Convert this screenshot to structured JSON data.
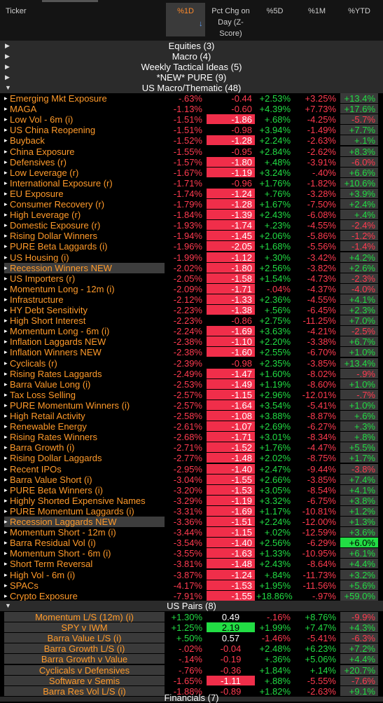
{
  "header": {
    "ticker": "Ticker",
    "c1": "%1D",
    "c1_arrow": "↓",
    "c2a": "Pct Chg on",
    "c2b": "Day (Z-",
    "c2c": "Score)",
    "c3": "%5D",
    "c4": "%1M",
    "c5": "%YTD"
  },
  "groups": {
    "equities": "Equities (3)",
    "macro": "Macro (4)",
    "weekly": "Weekly Tactical Ideas (5)",
    "new_pure": "*NEW* PURE (9)",
    "us_macro": "US Macro/Thematic (48)",
    "us_pairs": "US Pairs (8)",
    "financials": "Financials (7)"
  },
  "rows": [
    {
      "name": "Emerging Mkt Exposure",
      "d1": "-.63%",
      "z": "-0.44",
      "d5": "+2.53%",
      "m1": "+3.25%",
      "ytd": "+13.4%"
    },
    {
      "name": "MAGA",
      "d1": "-1.13%",
      "z": "-0.60",
      "d5": "+4.39%",
      "m1": "+7.73%",
      "ytd": "+17.6%"
    },
    {
      "name": "Low Vol - 6m (i)",
      "d1": "-1.51%",
      "z": "-1.86",
      "d5": "+.68%",
      "m1": "-4.25%",
      "ytd": "-5.7%"
    },
    {
      "name": "US China Reopening",
      "d1": "-1.51%",
      "z": "-0.98",
      "d5": "+3.94%",
      "m1": "-1.49%",
      "ytd": "+7.7%"
    },
    {
      "name": "Buyback",
      "d1": "-1.52%",
      "z": "-1.28",
      "d5": "+2.24%",
      "m1": "-2.63%",
      "ytd": "+.1%"
    },
    {
      "name": "China Exposure",
      "d1": "-1.55%",
      "z": "-0.95",
      "d5": "+2.84%",
      "m1": "-2.62%",
      "ytd": "+8.3%"
    },
    {
      "name": "Defensives (r)",
      "d1": "-1.57%",
      "z": "-1.80",
      "d5": "+.48%",
      "m1": "-3.91%",
      "ytd": "-6.0%"
    },
    {
      "name": "Low Leverage (r)",
      "d1": "-1.67%",
      "z": "-1.19",
      "d5": "+3.24%",
      "m1": "-.40%",
      "ytd": "+6.6%"
    },
    {
      "name": "International Exposure (r)",
      "d1": "-1.71%",
      "z": "-0.96",
      "d5": "+1.76%",
      "m1": "-1.82%",
      "ytd": "+10.6%"
    },
    {
      "name": "EU Exposure",
      "d1": "-1.74%",
      "z": "-1.24",
      "d5": "+.76%",
      "m1": "-3.28%",
      "ytd": "+3.9%"
    },
    {
      "name": "Consumer Recovery (r)",
      "d1": "-1.79%",
      "z": "-1.28",
      "d5": "+1.67%",
      "m1": "-7.50%",
      "ytd": "+2.4%"
    },
    {
      "name": "High Leverage (r)",
      "d1": "-1.84%",
      "z": "-1.39",
      "d5": "+2.43%",
      "m1": "-6.08%",
      "ytd": "+.4%"
    },
    {
      "name": "Domestic Exposure (r)",
      "d1": "-1.93%",
      "z": "-1.74",
      "d5": "+.23%",
      "m1": "-4.55%",
      "ytd": "-2.4%"
    },
    {
      "name": "Rising Dollar Winners",
      "d1": "-1.94%",
      "z": "-1.45",
      "d5": "+2.06%",
      "m1": "-5.86%",
      "ytd": "-1.2%"
    },
    {
      "name": "PURE Beta Laggards (i)",
      "d1": "-1.96%",
      "z": "-2.05",
      "d5": "+1.68%",
      "m1": "-5.56%",
      "ytd": "-1.4%"
    },
    {
      "name": "US Housing (i)",
      "d1": "-1.99%",
      "z": "-1.12",
      "d5": "+.30%",
      "m1": "-3.42%",
      "ytd": "+4.2%"
    },
    {
      "name": "Recession Winners NEW",
      "d1": "-2.02%",
      "z": "-1.80",
      "d5": "+2.56%",
      "m1": "-3.82%",
      "ytd": "+2.6%"
    },
    {
      "name": "US Importers (r)",
      "d1": "-2.05%",
      "z": "-1.58",
      "d5": "+1.54%",
      "m1": "-4.73%",
      "ytd": "-2.3%"
    },
    {
      "name": "Momentum Long - 12m (i)",
      "d1": "-2.09%",
      "z": "-1.71",
      "d5": "-.04%",
      "m1": "-4.37%",
      "ytd": "-4.0%"
    },
    {
      "name": "Infrastructure",
      "d1": "-2.12%",
      "z": "-1.33",
      "d5": "+2.36%",
      "m1": "-4.55%",
      "ytd": "+4.1%"
    },
    {
      "name": "HY Debt Sensitivity",
      "d1": "-2.23%",
      "z": "-1.38",
      "d5": "+.56%",
      "m1": "-6.45%",
      "ytd": "+2.3%"
    },
    {
      "name": "High Short Interest",
      "d1": "-2.23%",
      "z": "-0.86",
      "d5": "+2.75%",
      "m1": "-11.25%",
      "ytd": "+7.0%"
    },
    {
      "name": "Momentum Long - 6m (i)",
      "d1": "-2.24%",
      "z": "-1.69",
      "d5": "+3.63%",
      "m1": "-4.21%",
      "ytd": "-2.5%"
    },
    {
      "name": "Inflation Laggards NEW",
      "d1": "-2.38%",
      "z": "-1.10",
      "d5": "+2.20%",
      "m1": "-3.38%",
      "ytd": "+6.7%"
    },
    {
      "name": "Inflation Winners NEW",
      "d1": "-2.38%",
      "z": "-1.60",
      "d5": "+2.55%",
      "m1": "-6.70%",
      "ytd": "+1.0%"
    },
    {
      "name": "Cyclicals (r)",
      "d1": "-2.39%",
      "z": "-0.98",
      "d5": "+2.35%",
      "m1": "-3.85%",
      "ytd": "+13.4%"
    },
    {
      "name": "Rising Rates Laggards",
      "d1": "-2.49%",
      "z": "-1.47",
      "d5": "+1.60%",
      "m1": "-8.02%",
      "ytd": "-.9%"
    },
    {
      "name": "Barra Value Long (i)",
      "d1": "-2.53%",
      "z": "-1.49",
      "d5": "+1.19%",
      "m1": "-8.60%",
      "ytd": "+1.0%"
    },
    {
      "name": "Tax Loss Selling",
      "d1": "-2.57%",
      "z": "-1.15",
      "d5": "+2.96%",
      "m1": "-12.01%",
      "ytd": "-.7%"
    },
    {
      "name": "PURE Momentum Winners (i)",
      "d1": "-2.57%",
      "z": "-1.64",
      "d5": "+3.54%",
      "m1": "-5.41%",
      "ytd": "+1.0%"
    },
    {
      "name": "High Retail Activity",
      "d1": "-2.58%",
      "z": "-1.08",
      "d5": "+3.88%",
      "m1": "-8.87%",
      "ytd": "+.6%"
    },
    {
      "name": "Renewable Energy",
      "d1": "-2.61%",
      "z": "-1.07",
      "d5": "+2.69%",
      "m1": "-6.27%",
      "ytd": "+.3%"
    },
    {
      "name": "Rising Rates Winners",
      "d1": "-2.68%",
      "z": "-1.71",
      "d5": "+3.01%",
      "m1": "-8.34%",
      "ytd": "+.8%"
    },
    {
      "name": "Barra Growth (i)",
      "d1": "-2.71%",
      "z": "-1.52",
      "d5": "+1.76%",
      "m1": "-4.47%",
      "ytd": "+5.5%"
    },
    {
      "name": "Rising Dollar Laggards",
      "d1": "-2.77%",
      "z": "-1.48",
      "d5": "+2.02%",
      "m1": "-8.75%",
      "ytd": "+1.7%"
    },
    {
      "name": "Recent IPOs",
      "d1": "-2.95%",
      "z": "-1.40",
      "d5": "+2.47%",
      "m1": "-9.44%",
      "ytd": "-3.8%"
    },
    {
      "name": "Barra Value Short (i)",
      "d1": "-3.04%",
      "z": "-1.55",
      "d5": "+2.66%",
      "m1": "-3.85%",
      "ytd": "+7.4%"
    },
    {
      "name": "PURE Beta Winners (i)",
      "d1": "-3.20%",
      "z": "-1.53",
      "d5": "+3.05%",
      "m1": "-8.54%",
      "ytd": "+4.1%"
    },
    {
      "name": "Highly Shorted Expensive Names",
      "d1": "-3.29%",
      "z": "-1.19",
      "d5": "+3.32%",
      "m1": "-6.75%",
      "ytd": "+3.8%"
    },
    {
      "name": "PURE Momentum Laggards (i)",
      "d1": "-3.31%",
      "z": "-1.69",
      "d5": "+1.17%",
      "m1": "-10.81%",
      "ytd": "+1.2%"
    },
    {
      "name": "Recession Laggards NEW",
      "d1": "-3.36%",
      "z": "-1.51",
      "d5": "+2.24%",
      "m1": "-12.00%",
      "ytd": "+1.3%"
    },
    {
      "name": "Momentum Short - 12m (i)",
      "d1": "-3.44%",
      "z": "-1.15",
      "d5": "+.02%",
      "m1": "-12.59%",
      "ytd": "+3.6%"
    },
    {
      "name": "Barra Residual Vol (i)",
      "d1": "-3.54%",
      "z": "-1.40",
      "d5": "+2.56%",
      "m1": "-6.29%",
      "ytd": "+6.0%"
    },
    {
      "name": "Momentum Short - 6m (i)",
      "d1": "-3.55%",
      "z": "-1.63",
      "d5": "+1.33%",
      "m1": "-10.95%",
      "ytd": "+6.1%"
    },
    {
      "name": "Short Term Reversal",
      "d1": "-3.81%",
      "z": "-1.48",
      "d5": "+2.43%",
      "m1": "-8.64%",
      "ytd": "+4.4%"
    },
    {
      "name": "High Vol - 6m (i)",
      "d1": "-3.87%",
      "z": "-1.24",
      "d5": "+.84%",
      "m1": "-11.73%",
      "ytd": "+3.2%"
    },
    {
      "name": "SPACs",
      "d1": "-4.17%",
      "z": "-1.53",
      "d5": "+1.95%",
      "m1": "-11.56%",
      "ytd": "+5.6%"
    },
    {
      "name": "Crypto Exposure",
      "d1": "-7.91%",
      "z": "-1.55",
      "d5": "+18.86%",
      "m1": "-.97%",
      "ytd": "+59.0%"
    }
  ],
  "pairs": [
    {
      "name": "Momentum L/S (12m) (i)",
      "d1": "+1.30%",
      "z": "0.49",
      "d5": "-.16%",
      "m1": "+8.76%",
      "ytd": "-9.9%"
    },
    {
      "name": "SPY v IWM",
      "d1": "+1.25%",
      "z": "2.19",
      "d5": "+1.99%",
      "m1": "+7.47%",
      "ytd": "+4.3%"
    },
    {
      "name": "Barra Value L/S (i)",
      "d1": "+.50%",
      "z": "0.57",
      "d5": "-1.46%",
      "m1": "-5.41%",
      "ytd": "-6.3%"
    },
    {
      "name": "Barra Growth L/S (i)",
      "d1": "-.02%",
      "z": "-0.04",
      "d5": "+2.48%",
      "m1": "+6.23%",
      "ytd": "+7.2%"
    },
    {
      "name": "Barra Growth v Value",
      "d1": "-.14%",
      "z": "-0.19",
      "d5": "+.36%",
      "m1": "+5.06%",
      "ytd": "+4.4%"
    },
    {
      "name": "Cyclicals v Defensives",
      "d1": "-.76%",
      "z": "-0.36",
      "d5": "+1.84%",
      "m1": "+.14%",
      "ytd": "+20.7%"
    },
    {
      "name": "Software v Semis",
      "d1": "-1.65%",
      "z": "-1.11",
      "d5": "+.88%",
      "m1": "-5.55%",
      "ytd": "-7.6%"
    },
    {
      "name": "Barra Res Vol L/S (i)",
      "d1": "-1.88%",
      "z": "-0.89",
      "d5": "+1.82%",
      "m1": "-2.63%",
      "ytd": "+9.1%"
    }
  ]
}
